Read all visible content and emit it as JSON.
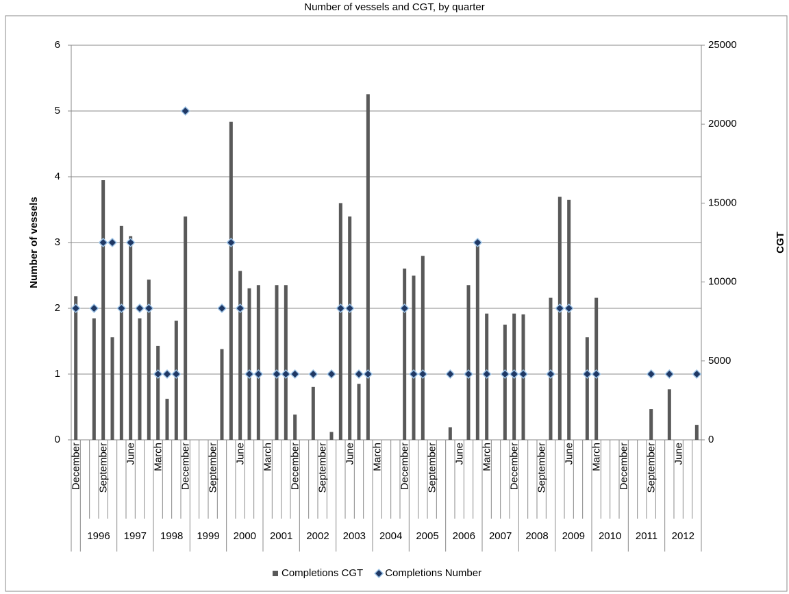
{
  "chart_data": {
    "type": "combo",
    "title": "Number of vessels and CGT, by quarter",
    "y_label": "Number of vessels",
    "y2_label": "CGT",
    "categories": [
      "December",
      null,
      null,
      "September",
      null,
      null,
      "June",
      null,
      null,
      "March",
      null,
      null,
      "December",
      null,
      null,
      "September",
      null,
      null,
      "June",
      null,
      null,
      "March",
      null,
      null,
      "December",
      null,
      null,
      "September",
      null,
      null,
      "June",
      null,
      null,
      "March",
      null,
      null,
      "December",
      null,
      null,
      "September",
      null,
      null,
      "June",
      null,
      null,
      "March",
      null,
      null,
      "December",
      null,
      null,
      "September",
      null,
      null,
      "June",
      null,
      null,
      "March",
      null,
      null,
      "December",
      null,
      null,
      "September",
      null,
      null,
      "June",
      null,
      null
    ],
    "category_years": [
      null,
      "1996",
      "1996",
      "1996",
      "1996",
      "1997",
      "1997",
      "1997",
      "1997",
      "1998",
      "1998",
      "1998",
      "1998",
      "1999",
      "1999",
      "1999",
      "1999",
      "2000",
      "2000",
      "2000",
      "2000",
      "2001",
      "2001",
      "2001",
      "2001",
      "2002",
      "2002",
      "2002",
      "2002",
      "2003",
      "2003",
      "2003",
      "2003",
      "2004",
      "2004",
      "2004",
      "2004",
      "2005",
      "2005",
      "2005",
      "2005",
      "2006",
      "2006",
      "2006",
      "2006",
      "2007",
      "2007",
      "2007",
      "2007",
      "2008",
      "2008",
      "2008",
      "2008",
      "2009",
      "2009",
      "2009",
      "2009",
      "2010",
      "2010",
      "2010",
      "2010",
      "2011",
      "2011",
      "2011",
      "2011",
      "2012",
      "2012",
      "2012",
      "2012"
    ],
    "series": [
      {
        "name": "Completions CGT",
        "type": "bar",
        "axis": "y2",
        "color": "#595959",
        "values": [
          9100,
          null,
          7700,
          16450,
          6500,
          13550,
          12900,
          7700,
          10150,
          5950,
          2600,
          7550,
          14150,
          null,
          null,
          null,
          5750,
          20150,
          10700,
          9600,
          9800,
          null,
          9800,
          9800,
          1600,
          null,
          3350,
          null,
          500,
          15000,
          14150,
          3550,
          21900,
          null,
          null,
          null,
          10850,
          10400,
          11650,
          null,
          null,
          800,
          null,
          9800,
          12700,
          8000,
          null,
          7300,
          8000,
          7950,
          null,
          null,
          9000,
          15400,
          15200,
          null,
          6500,
          9000,
          null,
          null,
          null,
          null,
          null,
          1950,
          null,
          3200,
          null,
          null,
          950
        ]
      },
      {
        "name": "Completions Number",
        "type": "scatter",
        "marker": "diamond",
        "color": "#1f3864",
        "values": [
          2,
          null,
          2,
          3,
          3,
          2,
          3,
          2,
          2,
          1,
          1,
          1,
          5,
          null,
          null,
          null,
          2,
          3,
          2,
          1,
          1,
          null,
          1,
          1,
          1,
          null,
          1,
          null,
          1,
          2,
          2,
          1,
          1,
          null,
          null,
          null,
          2,
          1,
          1,
          null,
          null,
          1,
          null,
          1,
          3,
          1,
          null,
          1,
          1,
          1,
          null,
          null,
          1,
          2,
          2,
          null,
          1,
          1,
          null,
          null,
          null,
          null,
          null,
          1,
          null,
          1,
          null,
          null,
          1
        ]
      }
    ],
    "ylim": [
      0,
      6
    ],
    "yticks": [
      0,
      1,
      2,
      3,
      4,
      5,
      6
    ],
    "y2lim": [
      0,
      25000
    ],
    "y2ticks": [
      0,
      5000,
      10000,
      15000,
      20000,
      25000
    ],
    "grid": true,
    "legend": "bottom"
  }
}
